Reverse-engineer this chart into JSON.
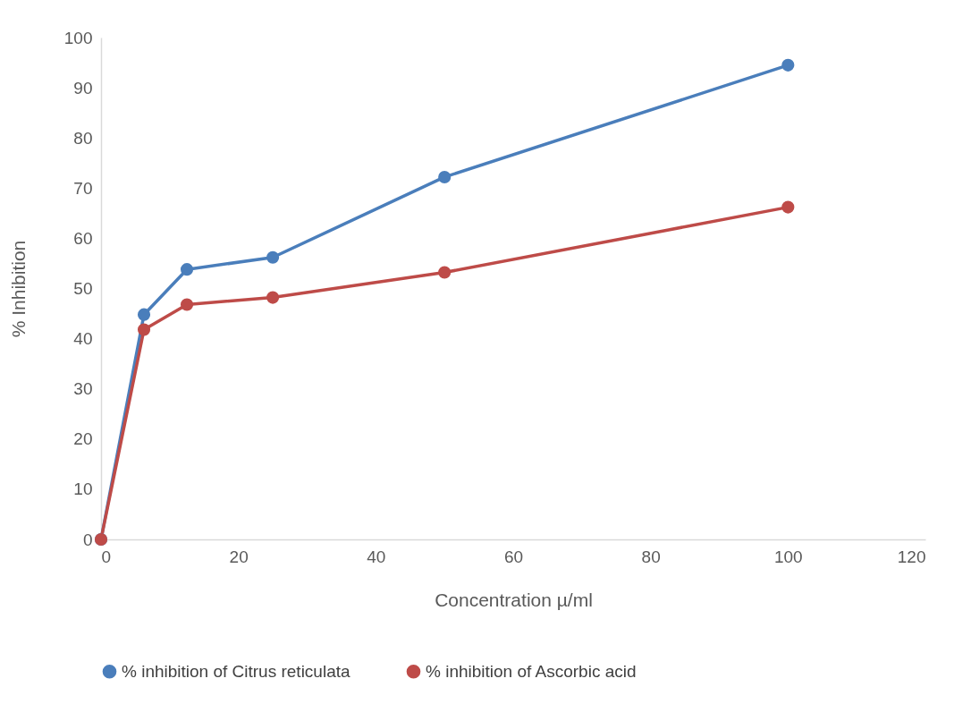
{
  "chart_data": {
    "type": "line",
    "xlabel": "Concentration µ/ml",
    "ylabel": "%  Inhibition",
    "x": [
      0,
      6.25,
      12.5,
      25,
      50,
      100
    ],
    "series": [
      {
        "name": "% inhibition of Citrus reticulata",
        "color": "#4a7ebb",
        "values": [
          0,
          44.8,
          53.8,
          56.2,
          72.2,
          94.5
        ]
      },
      {
        "name": "% inhibition of Ascorbic acid",
        "color": "#be4b48",
        "values": [
          0,
          41.8,
          46.8,
          48.2,
          53.2,
          66.2
        ]
      }
    ],
    "xlim": [
      0,
      120
    ],
    "xticks": [
      0,
      20,
      40,
      60,
      80,
      100,
      120
    ],
    "ylim": [
      0,
      100
    ],
    "yticks": [
      0,
      10,
      20,
      30,
      40,
      50,
      60,
      70,
      80,
      90,
      100
    ],
    "grid": false,
    "legend": "bottom",
    "marker": "circle",
    "line_style": "solid"
  }
}
